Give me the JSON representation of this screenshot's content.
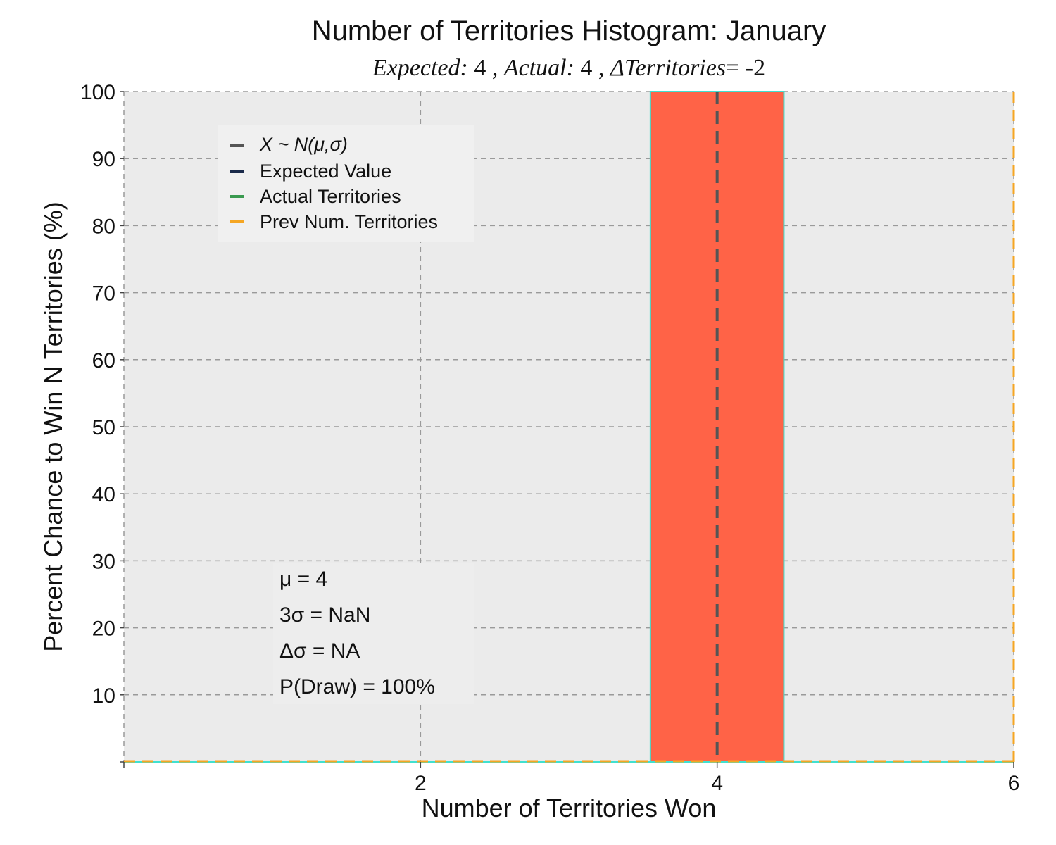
{
  "title": "Number of Territories Histogram: January",
  "subtitle": {
    "expected_label": "Expected:",
    "expected_value": "4",
    "actual_label": "Actual:",
    "actual_value": "4",
    "delta_label": "ΔTerritories",
    "delta_value": "= -2",
    "separator": ","
  },
  "legend": {
    "placement": "upper-left",
    "items": [
      {
        "label": "X ~ N(μ,σ)",
        "color": "#555555",
        "italic": true
      },
      {
        "label": "Expected Value",
        "color": "#1a2a4a",
        "italic": false
      },
      {
        "label": "Actual Territories",
        "color": "#3a9a50",
        "italic": false
      },
      {
        "label": "Prev Num. Territories",
        "color": "#f5a623",
        "italic": false
      }
    ]
  },
  "stats": {
    "mu_label": "μ = 4",
    "three_sigma_label": "3σ = NaN",
    "delta_sigma_label": "Δσ = NA",
    "p_draw_label": "P(Draw) = 100%"
  },
  "colors": {
    "plot_bg": "#ebebeb",
    "bar_fill": "#ff6347",
    "bar_edge": "#40e0d0",
    "grid": "#9a9a9a",
    "expected_line": "#555555",
    "prev_line": "#f5a623",
    "cyan_line": "#40e0d0"
  },
  "chart_data": {
    "type": "bar",
    "title": "Number of Territories Histogram: January",
    "xlabel": "Number of Territories Won",
    "ylabel": "Percent Chance to Win N Territories (%)",
    "xlim": [
      0,
      6
    ],
    "ylim": [
      0,
      100
    ],
    "xticks": [
      2,
      4,
      6
    ],
    "yticks": [
      10,
      20,
      30,
      40,
      50,
      60,
      70,
      80,
      90,
      100
    ],
    "grid": true,
    "bars": [
      {
        "x": 4,
        "width": 0.9,
        "value": 100
      }
    ],
    "expected_value": 4,
    "actual_value": 4,
    "prev_value": 6,
    "normal_curve": {
      "mu": 4,
      "three_sigma": "NaN"
    }
  }
}
